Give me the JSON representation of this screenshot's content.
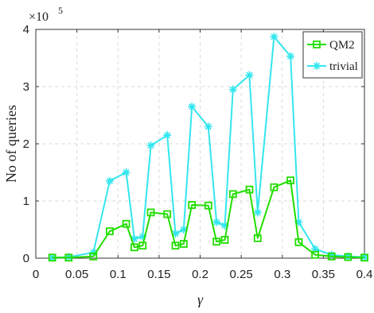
{
  "chart_data": {
    "type": "line",
    "xlabel": "γ",
    "ylabel": "No of queries",
    "y_exponent_label": "×10",
    "y_exponent": "5",
    "xlim": [
      0,
      0.4
    ],
    "ylim": [
      0,
      400000
    ],
    "x_ticks": [
      "0",
      "0.05",
      "0.1",
      "0.15",
      "0.2",
      "0.25",
      "0.3",
      "0.35",
      "0.4"
    ],
    "y_ticks": [
      "0",
      "1",
      "2",
      "3",
      "4"
    ],
    "grid": true,
    "legend_position": "top-right",
    "series": [
      {
        "name": "QM2",
        "color": "#22dd00",
        "marker": "square",
        "x": [
          0.02,
          0.04,
          0.07,
          0.09,
          0.11,
          0.12,
          0.13,
          0.14,
          0.16,
          0.17,
          0.18,
          0.19,
          0.21,
          0.22,
          0.23,
          0.24,
          0.26,
          0.27,
          0.29,
          0.31,
          0.32,
          0.34,
          0.36,
          0.38,
          0.4
        ],
        "y": [
          1000,
          1000,
          3000,
          47000,
          60000,
          19000,
          22000,
          80000,
          77000,
          22000,
          25000,
          93000,
          92000,
          29000,
          32000,
          112000,
          120000,
          35000,
          124000,
          136000,
          28000,
          6000,
          3000,
          2000,
          1000
        ]
      },
      {
        "name": "trivial",
        "color": "#33e6ee",
        "marker": "asterisk",
        "x": [
          0.02,
          0.04,
          0.07,
          0.09,
          0.11,
          0.12,
          0.13,
          0.14,
          0.16,
          0.17,
          0.18,
          0.19,
          0.21,
          0.22,
          0.23,
          0.24,
          0.26,
          0.27,
          0.29,
          0.31,
          0.32,
          0.34,
          0.36,
          0.38,
          0.4
        ],
        "y": [
          1000,
          2000,
          10000,
          135000,
          150000,
          34000,
          38000,
          197000,
          215000,
          43000,
          50000,
          265000,
          230000,
          63000,
          57000,
          295000,
          320000,
          80000,
          387000,
          353000,
          63000,
          16000,
          6000,
          3000,
          2000
        ]
      }
    ]
  }
}
